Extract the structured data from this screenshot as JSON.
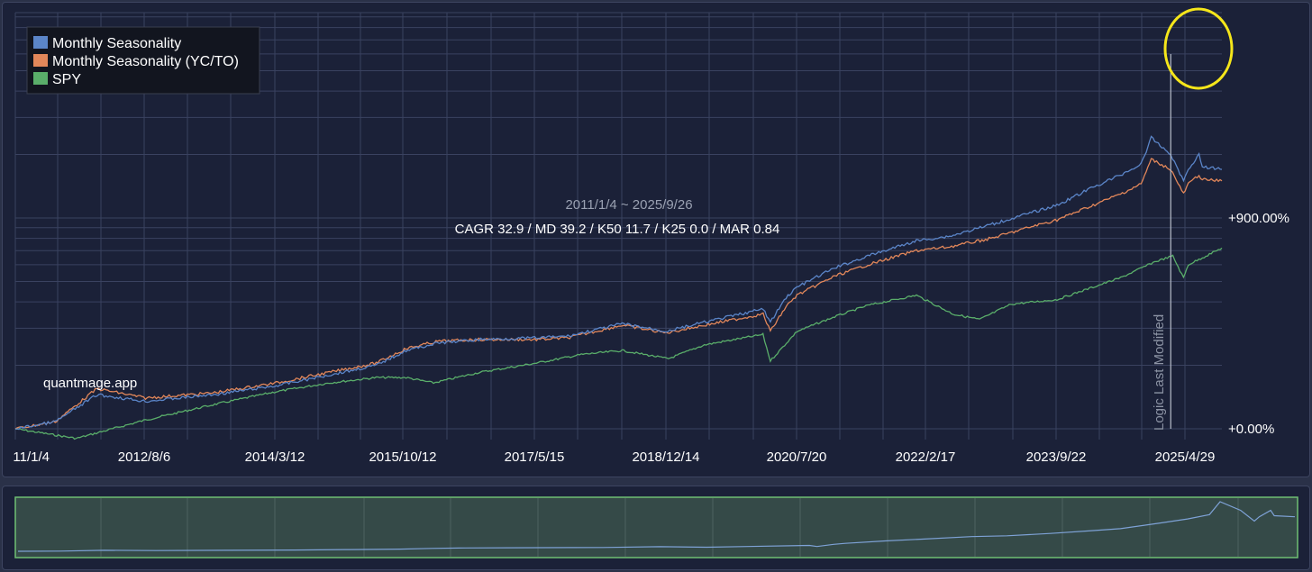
{
  "chart_data": {
    "type": "line",
    "date_range_label": "2011/1/4 ~ 2025/9/26",
    "stats_label": "CAGR 32.9 / MD 39.2 / K50 11.7 / K25 0.0 / MAR 0.84",
    "watermark": "quantmage.app",
    "marker_label": "Logic Last Modified",
    "marker_date": "2025-02-10",
    "x_ticks": [
      "11/1/4",
      "2012/8/6",
      "2014/3/12",
      "2015/10/12",
      "2017/5/15",
      "2018/12/14",
      "2020/7/20",
      "2022/2/17",
      "2023/9/22",
      "2025/4/29"
    ],
    "y_ticks": [
      "+900.00%",
      "+0.00%"
    ],
    "x_range": [
      "2011-01-04",
      "2025-09-26"
    ],
    "y_scale": "log",
    "grid": true,
    "legend_position": "top-left",
    "series": [
      {
        "name": "Monthly Seasonality",
        "color": "#5b85c8",
        "x": [
          "2011-01-04",
          "2011-07-01",
          "2012-01-03",
          "2012-08-06",
          "2013-06-03",
          "2014-03-12",
          "2014-11-03",
          "2015-06-01",
          "2015-10-12",
          "2016-03-01",
          "2016-09-01",
          "2017-05-15",
          "2017-10-02",
          "2018-06-01",
          "2018-12-14",
          "2019-06-03",
          "2020-02-20",
          "2020-03-23",
          "2020-06-01",
          "2020-07-20",
          "2021-01-04",
          "2021-06-01",
          "2022-01-03",
          "2022-06-01",
          "2022-12-01",
          "2023-06-01",
          "2023-09-22",
          "2024-03-01",
          "2024-07-01",
          "2024-10-01",
          "2024-11-15",
          "2025-02-10",
          "2025-04-08",
          "2025-04-29",
          "2025-06-16",
          "2025-07-01",
          "2025-09-26"
        ],
        "values": [
          0,
          8,
          45,
          35,
          45,
          60,
          80,
          100,
          135,
          155,
          165,
          170,
          175,
          215,
          190,
          220,
          270,
          220,
          320,
          370,
          480,
          560,
          680,
          720,
          830,
          960,
          1050,
          1300,
          1500,
          1700,
          2300,
          1900,
          1400,
          1600,
          1900,
          1650,
          1600
        ]
      },
      {
        "name": "Monthly Seasonality (YC/TO)",
        "color": "#e2875a",
        "x": [
          "2011-01-04",
          "2011-07-01",
          "2012-01-03",
          "2012-08-06",
          "2013-06-03",
          "2014-03-12",
          "2014-11-03",
          "2015-06-01",
          "2015-10-12",
          "2016-03-01",
          "2016-09-01",
          "2017-05-15",
          "2017-10-02",
          "2018-06-01",
          "2018-12-14",
          "2019-06-03",
          "2020-02-20",
          "2020-03-23",
          "2020-06-01",
          "2020-07-20",
          "2021-01-04",
          "2021-06-01",
          "2022-01-03",
          "2022-06-01",
          "2022-12-01",
          "2023-06-01",
          "2023-09-22",
          "2024-03-01",
          "2024-07-01",
          "2024-10-01",
          "2024-11-15",
          "2025-02-10",
          "2025-04-08",
          "2025-04-29",
          "2025-06-16",
          "2025-07-01",
          "2025-09-26"
        ],
        "values": [
          0,
          8,
          55,
          40,
          48,
          65,
          85,
          105,
          140,
          160,
          165,
          165,
          170,
          210,
          185,
          210,
          250,
          190,
          280,
          330,
          430,
          500,
          600,
          630,
          700,
          810,
          880,
          1050,
          1200,
          1350,
          1800,
          1600,
          1200,
          1350,
          1500,
          1420,
          1400
        ]
      },
      {
        "name": "SPY",
        "color": "#5aae6a",
        "x": [
          "2011-01-04",
          "2011-10-03",
          "2012-08-06",
          "2013-06-03",
          "2014-03-12",
          "2014-11-03",
          "2015-06-01",
          "2015-10-12",
          "2016-02-11",
          "2016-09-01",
          "2017-05-15",
          "2017-12-01",
          "2018-06-01",
          "2018-12-24",
          "2019-06-03",
          "2020-02-19",
          "2020-03-23",
          "2020-07-20",
          "2021-01-04",
          "2021-06-01",
          "2022-01-03",
          "2022-06-16",
          "2022-10-12",
          "2023-03-01",
          "2023-09-22",
          "2024-03-01",
          "2024-07-01",
          "2024-12-01",
          "2025-02-19",
          "2025-04-08",
          "2025-04-29",
          "2025-09-26"
        ],
        "values": [
          0,
          -10,
          10,
          30,
          50,
          65,
          75,
          75,
          65,
          85,
          105,
          125,
          135,
          115,
          150,
          180,
          110,
          190,
          240,
          285,
          330,
          250,
          230,
          290,
          310,
          370,
          420,
          520,
          560,
          420,
          500,
          620
        ]
      }
    ]
  }
}
